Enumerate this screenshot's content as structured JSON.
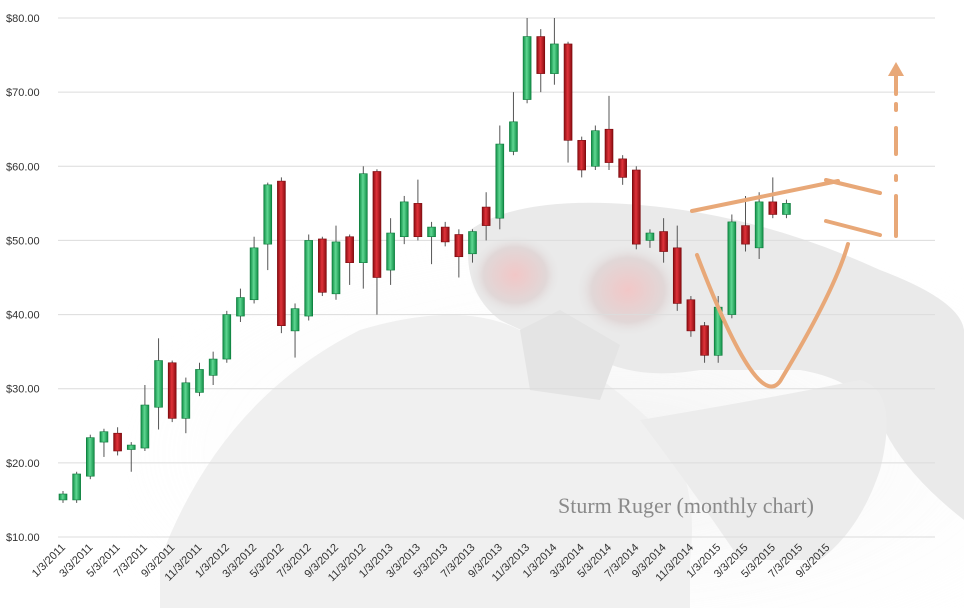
{
  "chart_data": {
    "type": "candlestick",
    "title": "Sturm Ruger (monthly chart)",
    "xlabel": "",
    "ylabel": "",
    "ylim": [
      10,
      80
    ],
    "y_ticks": [
      "$10.00",
      "$20.00",
      "$30.00",
      "$40.00",
      "$50.00",
      "$60.00",
      "$70.00",
      "$80.00"
    ],
    "y_tick_values": [
      10,
      20,
      30,
      40,
      50,
      60,
      70,
      80
    ],
    "x_tick_labels": [
      "1/3/2011",
      "3/3/2011",
      "5/3/2011",
      "7/3/2011",
      "9/3/2011",
      "11/3/2011",
      "1/3/2012",
      "3/3/2012",
      "5/3/2012",
      "7/3/2012",
      "9/3/2012",
      "11/3/2012",
      "1/3/2013",
      "3/3/2013",
      "5/3/2013",
      "7/3/2013",
      "9/3/2013",
      "11/3/2013",
      "1/3/2014",
      "3/3/2014",
      "5/3/2014",
      "7/3/2014",
      "9/3/2014",
      "11/3/2014",
      "1/3/2015",
      "3/3/2015",
      "5/3/2015",
      "7/3/2015",
      "9/3/2015"
    ],
    "grid": true,
    "colors": {
      "up": "#1fae5c",
      "down": "#b5141a",
      "annotation": "#e8a878",
      "grid": "#dcdcdc"
    },
    "candles": [
      {
        "d": "1/3/2011",
        "o": 15.0,
        "h": 16.2,
        "l": 14.6,
        "c": 15.8
      },
      {
        "d": "2/3/2011",
        "o": 15.0,
        "h": 18.8,
        "l": 14.6,
        "c": 18.5
      },
      {
        "d": "3/3/2011",
        "o": 18.2,
        "h": 23.8,
        "l": 17.8,
        "c": 23.4
      },
      {
        "d": "4/3/2011",
        "o": 22.8,
        "h": 24.6,
        "l": 20.8,
        "c": 24.2
      },
      {
        "d": "5/3/2011",
        "o": 24.0,
        "h": 24.8,
        "l": 21.0,
        "c": 21.6
      },
      {
        "d": "6/3/2011",
        "o": 21.8,
        "h": 22.8,
        "l": 18.8,
        "c": 22.4
      },
      {
        "d": "7/3/2011",
        "o": 22.0,
        "h": 30.5,
        "l": 21.6,
        "c": 27.8
      },
      {
        "d": "8/3/2011",
        "o": 27.5,
        "h": 36.8,
        "l": 24.5,
        "c": 33.8
      },
      {
        "d": "9/3/2011",
        "o": 33.5,
        "h": 33.8,
        "l": 25.5,
        "c": 26.0
      },
      {
        "d": "10/3/2011",
        "o": 26.0,
        "h": 31.5,
        "l": 24.0,
        "c": 30.8
      },
      {
        "d": "11/3/2011",
        "o": 29.5,
        "h": 33.5,
        "l": 29.0,
        "c": 32.6
      },
      {
        "d": "12/3/2011",
        "o": 31.8,
        "h": 35.0,
        "l": 30.5,
        "c": 34.0
      },
      {
        "d": "1/3/2012",
        "o": 34.0,
        "h": 40.5,
        "l": 33.5,
        "c": 40.0
      },
      {
        "d": "2/3/2012",
        "o": 39.8,
        "h": 43.5,
        "l": 39.0,
        "c": 42.3
      },
      {
        "d": "3/3/2012",
        "o": 42.0,
        "h": 50.5,
        "l": 41.5,
        "c": 49.0
      },
      {
        "d": "4/3/2012",
        "o": 49.5,
        "h": 57.8,
        "l": 46.0,
        "c": 57.5
      },
      {
        "d": "5/3/2012",
        "o": 58.0,
        "h": 58.5,
        "l": 37.5,
        "c": 38.5
      },
      {
        "d": "6/3/2012",
        "o": 37.8,
        "h": 41.5,
        "l": 34.2,
        "c": 40.8
      },
      {
        "d": "7/3/2012",
        "o": 39.8,
        "h": 50.8,
        "l": 39.2,
        "c": 50.0
      },
      {
        "d": "8/3/2012",
        "o": 50.2,
        "h": 50.5,
        "l": 42.5,
        "c": 43.0
      },
      {
        "d": "9/3/2012",
        "o": 42.8,
        "h": 52.0,
        "l": 42.0,
        "c": 49.8
      },
      {
        "d": "10/3/2012",
        "o": 50.5,
        "h": 50.8,
        "l": 44.0,
        "c": 47.0
      },
      {
        "d": "11/3/2012",
        "o": 47.0,
        "h": 60.0,
        "l": 43.5,
        "c": 59.0
      },
      {
        "d": "12/3/2012",
        "o": 59.3,
        "h": 59.6,
        "l": 40.0,
        "c": 45.0
      },
      {
        "d": "1/3/2013",
        "o": 46.0,
        "h": 53.0,
        "l": 44.0,
        "c": 51.0
      },
      {
        "d": "2/3/2013",
        "o": 50.5,
        "h": 56.0,
        "l": 49.5,
        "c": 55.2
      },
      {
        "d": "3/3/2013",
        "o": 55.0,
        "h": 58.2,
        "l": 50.0,
        "c": 50.5
      },
      {
        "d": "4/3/2013",
        "o": 50.5,
        "h": 52.5,
        "l": 46.8,
        "c": 51.8
      },
      {
        "d": "5/3/2013",
        "o": 51.8,
        "h": 52.5,
        "l": 49.2,
        "c": 49.8
      },
      {
        "d": "6/3/2013",
        "o": 50.8,
        "h": 51.5,
        "l": 45.0,
        "c": 47.8
      },
      {
        "d": "7/3/2013",
        "o": 48.2,
        "h": 51.5,
        "l": 47.0,
        "c": 51.2
      },
      {
        "d": "8/3/2013",
        "o": 54.5,
        "h": 56.5,
        "l": 50.0,
        "c": 52.0
      },
      {
        "d": "9/3/2013",
        "o": 53.0,
        "h": 65.5,
        "l": 51.5,
        "c": 63.0
      },
      {
        "d": "10/3/2013",
        "o": 62.0,
        "h": 70.0,
        "l": 61.5,
        "c": 66.0
      },
      {
        "d": "11/3/2013",
        "o": 69.0,
        "h": 80.0,
        "l": 68.5,
        "c": 77.5
      },
      {
        "d": "12/3/2013",
        "o": 77.5,
        "h": 78.5,
        "l": 70.0,
        "c": 72.5
      },
      {
        "d": "1/3/2014",
        "o": 72.5,
        "h": 80.0,
        "l": 71.0,
        "c": 76.5
      },
      {
        "d": "2/3/2014",
        "o": 76.5,
        "h": 76.8,
        "l": 60.5,
        "c": 63.5
      },
      {
        "d": "3/3/2014",
        "o": 63.5,
        "h": 64.0,
        "l": 58.5,
        "c": 59.5
      },
      {
        "d": "4/3/2014",
        "o": 60.0,
        "h": 65.5,
        "l": 59.5,
        "c": 64.8
      },
      {
        "d": "5/3/2014",
        "o": 65.0,
        "h": 69.5,
        "l": 59.5,
        "c": 60.5
      },
      {
        "d": "6/3/2014",
        "o": 61.0,
        "h": 61.5,
        "l": 57.5,
        "c": 58.5
      },
      {
        "d": "7/3/2014",
        "o": 59.5,
        "h": 60.0,
        "l": 48.8,
        "c": 49.5
      },
      {
        "d": "8/3/2014",
        "o": 50.0,
        "h": 51.5,
        "l": 49.0,
        "c": 51.0
      },
      {
        "d": "9/3/2014",
        "o": 51.2,
        "h": 53.0,
        "l": 47.0,
        "c": 48.5
      },
      {
        "d": "10/3/2014",
        "o": 49.0,
        "h": 52.0,
        "l": 40.5,
        "c": 41.5
      },
      {
        "d": "11/3/2014",
        "o": 42.0,
        "h": 42.5,
        "l": 37.0,
        "c": 37.8
      },
      {
        "d": "12/3/2014",
        "o": 38.5,
        "h": 39.0,
        "l": 33.5,
        "c": 34.5
      },
      {
        "d": "1/3/2015",
        "o": 34.5,
        "h": 42.5,
        "l": 33.5,
        "c": 41.0
      },
      {
        "d": "2/3/2015",
        "o": 40.0,
        "h": 53.5,
        "l": 39.5,
        "c": 52.5
      },
      {
        "d": "3/3/2015",
        "o": 52.0,
        "h": 56.0,
        "l": 48.5,
        "c": 49.5
      },
      {
        "d": "4/3/2015",
        "o": 49.0,
        "h": 56.5,
        "l": 47.5,
        "c": 55.2
      },
      {
        "d": "5/3/2015",
        "o": 55.2,
        "h": 58.5,
        "l": 53.0,
        "c": 53.5
      },
      {
        "d": "6/3/2015",
        "o": 53.5,
        "h": 55.5,
        "l": 53.0,
        "c": 55.0
      }
    ]
  }
}
